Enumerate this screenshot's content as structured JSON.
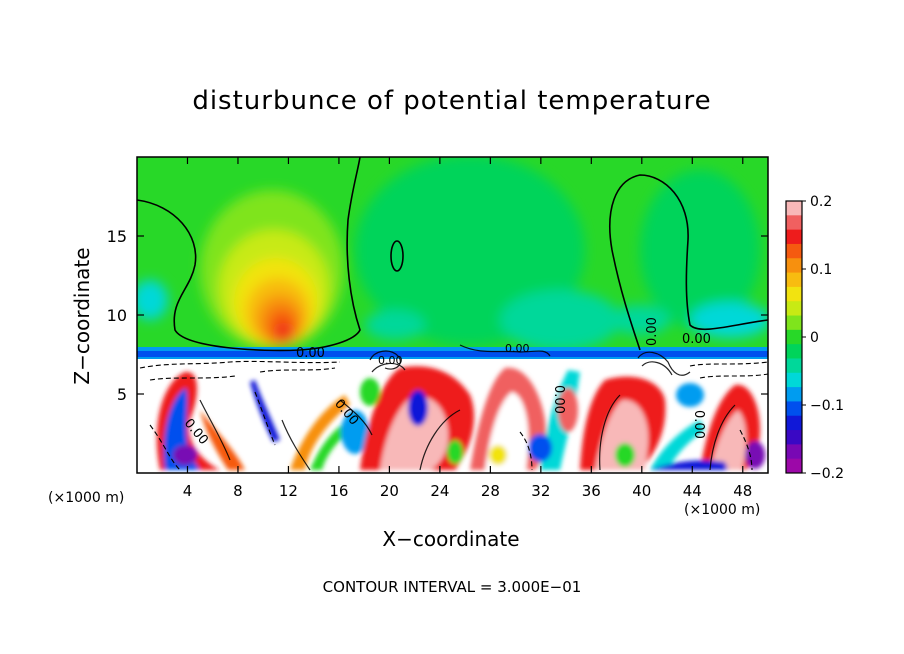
{
  "chart_data": {
    "type": "heatmap",
    "title": "disturbunce of potential temperature",
    "xlabel": "X−coordinate",
    "ylabel": "Z−coordinate",
    "x_unit_left": "(×1000 m)",
    "x_unit_right": "(×1000 m)",
    "xlim": [
      0,
      50
    ],
    "ylim": [
      0,
      20
    ],
    "x_ticks": [
      4,
      8,
      12,
      16,
      20,
      24,
      28,
      32,
      36,
      40,
      44,
      48
    ],
    "y_ticks": [
      5,
      10,
      15
    ],
    "colorbar": {
      "ticks": [
        0.2,
        0.1,
        0,
        -0.1,
        -0.2
      ],
      "tick_labels": [
        "0.2",
        "0.1",
        "0",
        "−0.1",
        "−0.2"
      ],
      "range": [
        -0.2,
        0.2
      ],
      "colors": [
        "#f8b8b8",
        "#f06060",
        "#ee1c1c",
        "#f55a10",
        "#f7900e",
        "#f8bc10",
        "#f2e310",
        "#c8ea14",
        "#7fe41c",
        "#28d828",
        "#00d45a",
        "#00d89a",
        "#00d8d8",
        "#009cf0",
        "#0050ee",
        "#1018d8",
        "#3a08c4",
        "#7808b4",
        "#9c08a8"
      ]
    },
    "contour_labels": [
      "0.00",
      "0.00",
      "0.00",
      "0.00",
      "0.00",
      "0.00",
      "0.00",
      "0.00",
      "0.00"
    ],
    "contour_interval_text": "CONTOUR INTERVAL = 3.000E−01"
  }
}
